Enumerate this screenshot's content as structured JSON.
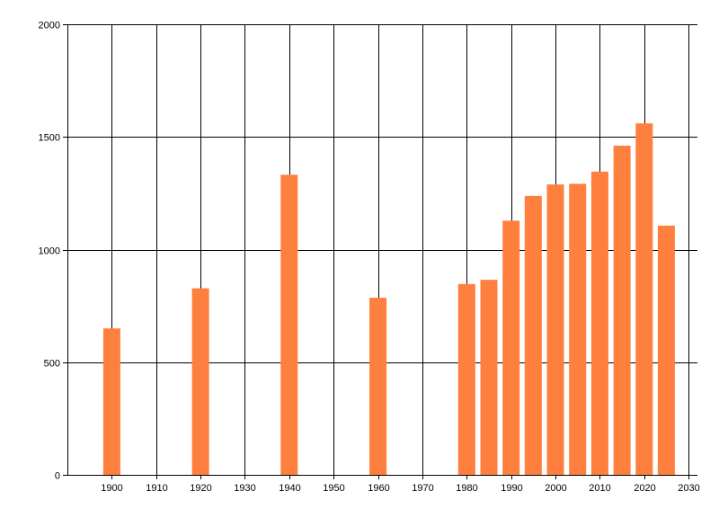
{
  "chart_data": {
    "type": "bar",
    "title": "",
    "xlabel": "",
    "ylabel": "",
    "x": [
      1900,
      1920,
      1940,
      1960,
      1980,
      1985,
      1990,
      1995,
      2000,
      2005,
      2010,
      2015,
      2020,
      2025
    ],
    "values": [
      650,
      828,
      1332,
      786,
      847,
      866,
      1128,
      1238,
      1289,
      1292,
      1346,
      1461,
      1560,
      1106
    ],
    "xlim": [
      1890,
      2032
    ],
    "ylim": [
      0,
      2000
    ],
    "xticks": [
      1900,
      1910,
      1920,
      1930,
      1940,
      1950,
      1960,
      1970,
      1980,
      1990,
      2000,
      2010,
      2020,
      2030
    ],
    "yticks": [
      0,
      500,
      1000,
      1500,
      2000
    ],
    "xtick_labels": [
      "1900",
      "1910",
      "1920",
      "1930",
      "1940",
      "1950",
      "1960",
      "1970",
      "1980",
      "1990",
      "2000",
      "2010",
      "2020",
      "2030"
    ],
    "ytick_labels": [
      "0",
      "500",
      "1000",
      "1500",
      "2000"
    ],
    "bar_color": "#ff7f3f",
    "grid": true,
    "legend": "none"
  }
}
